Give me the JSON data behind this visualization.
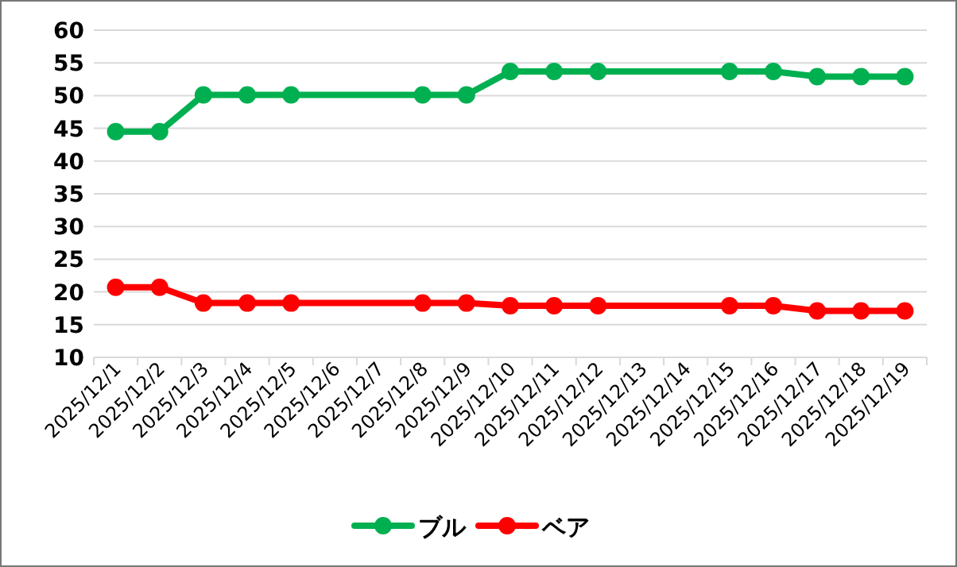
{
  "chart_data": {
    "type": "line",
    "categories": [
      "2025/12/1",
      "2025/12/2",
      "2025/12/3",
      "2025/12/4",
      "2025/12/5",
      "2025/12/6",
      "2025/12/7",
      "2025/12/8",
      "2025/12/9",
      "2025/12/10",
      "2025/12/11",
      "2025/12/12",
      "2025/12/13",
      "2025/12/14",
      "2025/12/15",
      "2025/12/16",
      "2025/12/17",
      "2025/12/18",
      "2025/12/19"
    ],
    "series": [
      {
        "name": "ブル",
        "color": "#00b050",
        "values": [
          44.5,
          44.5,
          50.1,
          50.1,
          50.1,
          null,
          null,
          50.1,
          50.1,
          53.7,
          53.7,
          53.7,
          null,
          null,
          53.7,
          53.7,
          52.9,
          52.9,
          52.9
        ]
      },
      {
        "name": "ベア",
        "color": "#ff0000",
        "values": [
          20.7,
          20.7,
          18.3,
          18.3,
          18.3,
          null,
          null,
          18.3,
          18.3,
          17.9,
          17.9,
          17.9,
          null,
          null,
          17.9,
          17.9,
          17.1,
          17.1,
          17.1
        ]
      }
    ],
    "ylim": [
      10,
      60
    ],
    "yticks": [
      10,
      15,
      20,
      25,
      30,
      35,
      40,
      45,
      50,
      55,
      60
    ],
    "grid": "y",
    "legend": "bottom",
    "marker": "circle",
    "line_style": "solid"
  }
}
